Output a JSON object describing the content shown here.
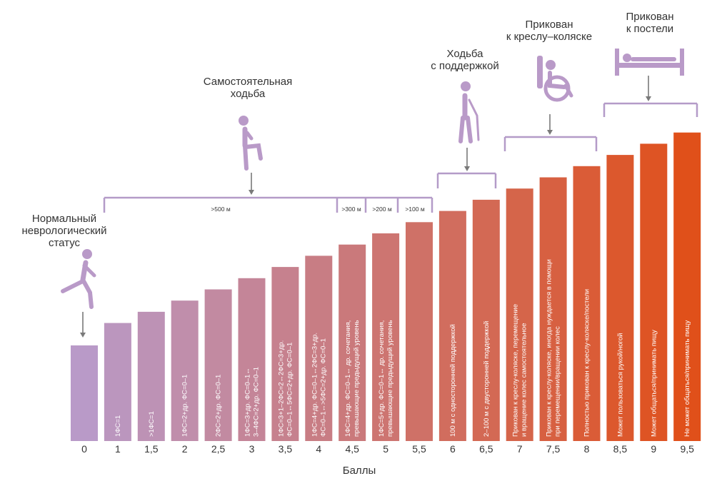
{
  "chart_data": {
    "type": "bar",
    "title": "",
    "xlabel": "Баллы",
    "ylabel": "",
    "categories": [
      "0",
      "1",
      "1,5",
      "2",
      "2,5",
      "3",
      "3,5",
      "4",
      "4,5",
      "5",
      "5,5",
      "6",
      "6,5",
      "7",
      "7,5",
      "8",
      "8,5",
      "9",
      "9,5"
    ],
    "values": [
      0,
      1,
      1.5,
      2,
      2.5,
      3,
      3.5,
      4,
      4.5,
      5,
      5.5,
      6,
      6.5,
      7,
      7.5,
      8,
      8.5,
      9,
      9.5
    ],
    "bar_labels": [
      [],
      [
        "1ФС=1"
      ],
      [
        ">1ФС=1"
      ],
      [
        "1ФС=2+др. ФС=0–1"
      ],
      [
        "2ФС=2+др. ФС=0–1"
      ],
      [
        "1ФС=3+др. ФС=0–1↔",
        "3–4ФС=2+др. ФС=0–1"
      ],
      [
        "1ФС=3+1–2ФС=2↔2ФС=3+др.",
        "ФС=0–1↔5ФС=2+др. ФС=0–1"
      ],
      [
        "1ФС=4+др. ФС=0–1↔2ФС=3+др.",
        "ФС=0–1↔>5ФС=2+др. ФС=0–1"
      ],
      [
        "1ФС=4+др. ФС=0–1↔ др. сочетания,",
        "превышающие предыдущий уровень"
      ],
      [
        "1ФС=5+др. ФС=0–1↔ др. сочетания,",
        "превышающие предыдущий уровень"
      ],
      [],
      [
        "100 м с односторонней поддержкой"
      ],
      [
        "2–100 м с двусторонней поддержкой"
      ],
      [
        "Прикован к креслу-коляске, перемещение",
        "и вращение колес самостоятельное"
      ],
      [
        "Прикован к креслу-коляске, иногда нуждается в помощи",
        "при перемещении/вращении колес"
      ],
      [
        "Полностью прикован к креслу-коляске/постели"
      ],
      [
        "Может пользоваться рукой/ногой"
      ],
      [
        "Может общаться/принимать пищу"
      ],
      [
        "Не может общаться/принимать пищу"
      ]
    ],
    "distance_labels": [
      ">500 м",
      ">300 м",
      ">200 м",
      ">100 м"
    ],
    "categories_annotations": [
      [
        "Нормальный",
        "неврологический",
        "статус"
      ],
      [
        "Самостоятельная",
        "ходьба"
      ],
      [
        "Ходьба",
        "с поддержкой"
      ],
      [
        "Прикован",
        "к креслу–коляске"
      ],
      [
        "Прикован",
        "к постели"
      ]
    ],
    "icons": [
      "running-person-icon",
      "walking-person-icon",
      "person-with-cane-icon",
      "wheelchair-icon",
      "bed-icon"
    ],
    "colors": {
      "start": "#b99ac8",
      "end": "#e0501a",
      "bracket": "#b49bc8",
      "arrow": "#7a7a7a"
    },
    "grid": false,
    "legend": "none"
  }
}
